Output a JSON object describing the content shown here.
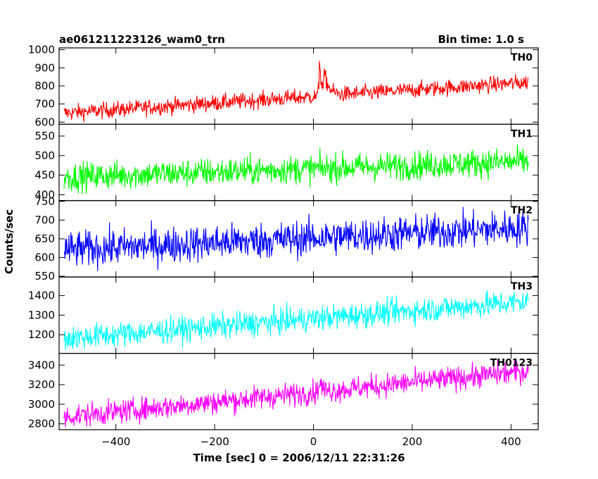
{
  "header": {
    "left_title": "ae061211223126_wam0_trn",
    "right_title": "Bin time: 1.0 s"
  },
  "chart_data": {
    "type": "line",
    "xlabel": "Time [sec] 0 = 2006/12/11 22:31:26",
    "ylabel": "Counts/sec",
    "xlim": [
      -515,
      455
    ],
    "xticks": [
      -400,
      -200,
      0,
      200,
      400
    ],
    "x_start": -505,
    "x_end": 435,
    "bin_time": 1.0,
    "panels": [
      {
        "name": "TH0",
        "color": "#ff0000",
        "ylim": [
          588,
          1010
        ],
        "yticks": [
          600,
          700,
          800,
          900,
          1000
        ],
        "baseline_start": 650,
        "baseline_end": 820,
        "noise": 22,
        "events": [
          {
            "x": 12,
            "peak": 960,
            "width": 4
          },
          {
            "x": 22,
            "peak": 860,
            "width": 10
          }
        ]
      },
      {
        "name": "TH1",
        "color": "#00ff00",
        "ylim": [
          385,
          580
        ],
        "yticks": [
          400,
          450,
          500,
          550
        ],
        "baseline_start": 445,
        "baseline_end": 485,
        "noise": 18,
        "events": []
      },
      {
        "name": "TH2",
        "color": "#0000ff",
        "ylim": [
          548,
          752
        ],
        "yticks": [
          550,
          600,
          650,
          700,
          750
        ],
        "baseline_start": 620,
        "baseline_end": 680,
        "noise": 24,
        "events": []
      },
      {
        "name": "TH3",
        "color": "#00ffff",
        "ylim": [
          1105,
          1495
        ],
        "yticks": [
          1200,
          1300,
          1400
        ],
        "baseline_start": 1180,
        "baseline_end": 1370,
        "noise": 32,
        "events": []
      },
      {
        "name": "TH0123",
        "color": "#ff00ff",
        "ylim": [
          2740,
          3520
        ],
        "yticks": [
          2800,
          3000,
          3200,
          3400
        ],
        "baseline_start": 2870,
        "baseline_end": 3340,
        "noise": 60,
        "events": [
          {
            "x": 12,
            "peak": 3270,
            "width": 4
          }
        ]
      }
    ]
  }
}
